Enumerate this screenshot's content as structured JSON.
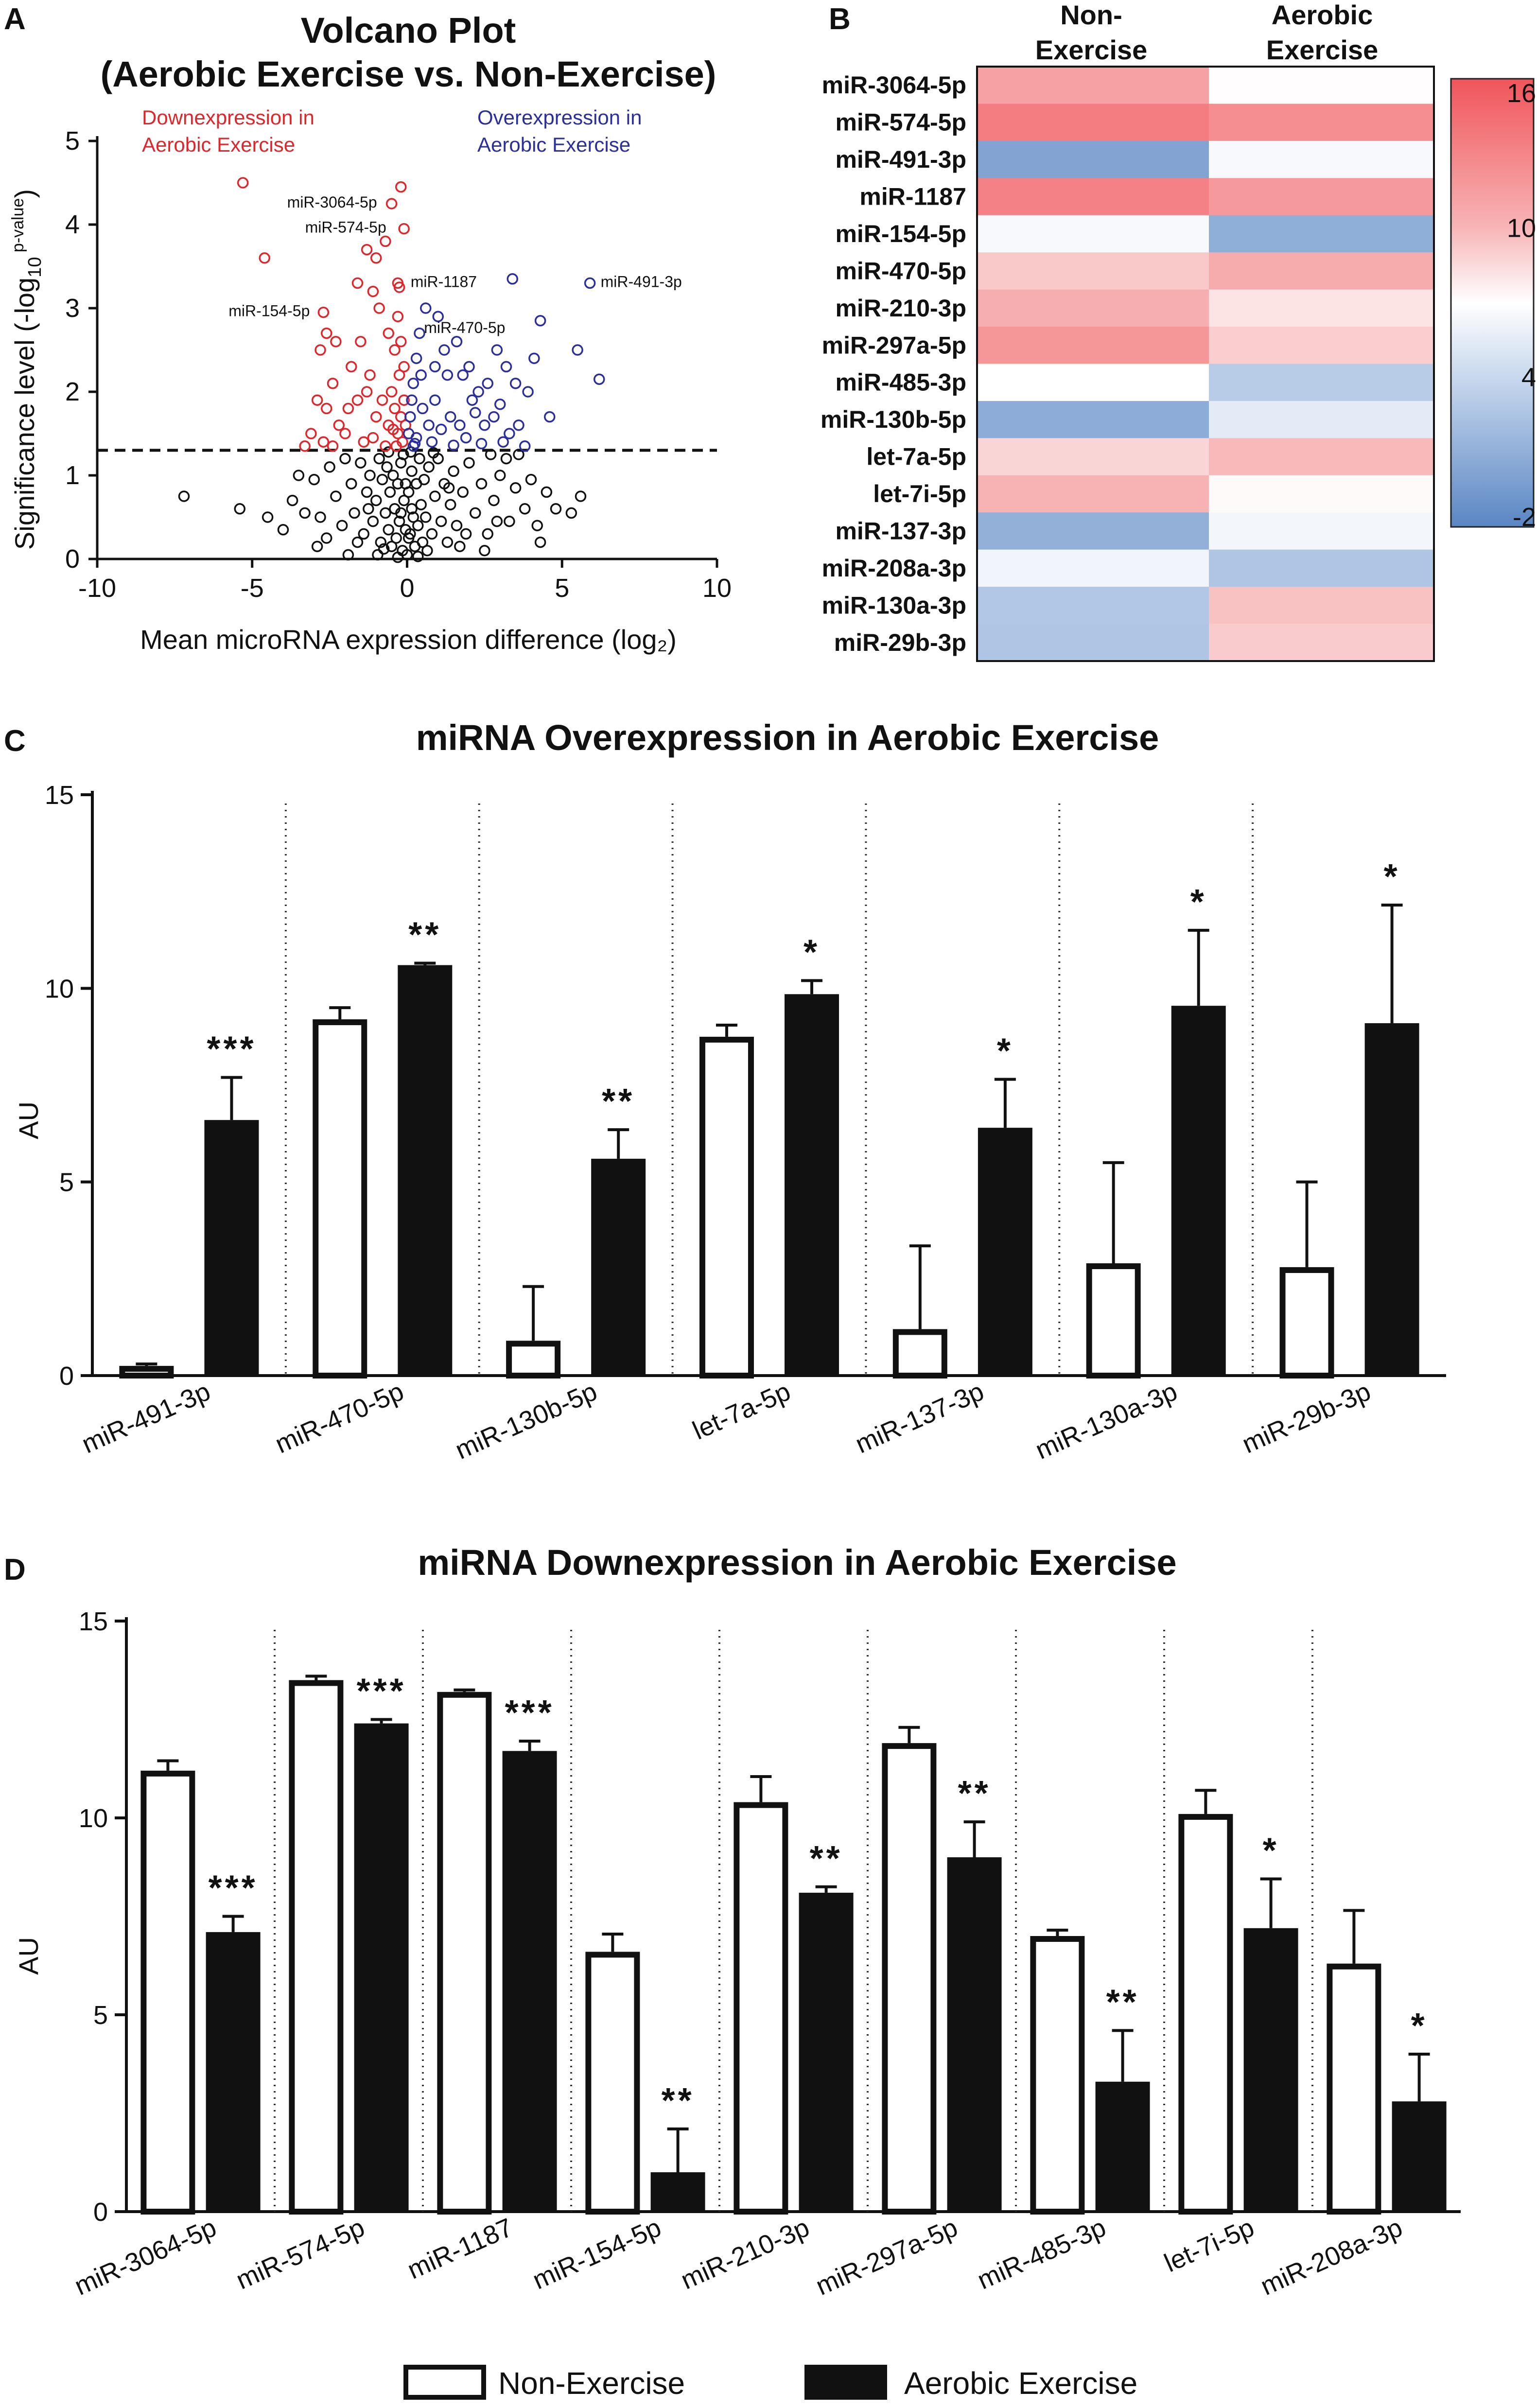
{
  "figure": {
    "panel_labels": [
      "A",
      "B",
      "C",
      "D"
    ],
    "legend": {
      "non_exercise": "Non-Exercise",
      "aerobic": "Aerobic Exercise"
    },
    "colors": {
      "down": "#e0262b",
      "up": "#2b2f9e",
      "neutral": "#111111",
      "hot": "#f0555a",
      "cold": "#5a86c4"
    }
  },
  "chart_data": [
    {
      "id": "A",
      "type": "scatter",
      "title": "Volcano  Plot",
      "subtitle": "(Aerobic Exercise vs. Non-Exercise)",
      "xlabel": "Mean microRNA expression difference (log₂)",
      "ylabel_main": "Significance level (-log",
      "ylabel_sub": "10",
      "ylabel_sup": " p-value",
      "ylabel_end": ")",
      "xlim": [
        -10,
        10
      ],
      "ylim": [
        0,
        5
      ],
      "xticks": [
        "-10",
        "-5",
        "0",
        "5",
        "10"
      ],
      "yticks": [
        "0",
        "1",
        "2",
        "3",
        "4",
        "5"
      ],
      "threshold_y": 1.3,
      "regions": {
        "down": [
          "Downexpression in",
          "Aerobic Exercise"
        ],
        "up": [
          "Overexpression in",
          "Aerobic Exercise"
        ]
      },
      "annotations": [
        {
          "label": "miR-3064-5p",
          "x": -0.5,
          "y": 4.25
        },
        {
          "label": "miR-574-5p",
          "x": -0.2,
          "y": 3.95
        },
        {
          "label": "miR-1187",
          "x": -0.2,
          "y": 3.3
        },
        {
          "label": "miR-491-3p",
          "x": 5.9,
          "y": 3.3
        },
        {
          "label": "miR-154-5p",
          "x": -2.7,
          "y": 2.95
        },
        {
          "label": "miR-470-5p",
          "x": 0.2,
          "y": 2.75
        }
      ],
      "points_down": [
        [
          -5.3,
          4.5
        ],
        [
          -4.6,
          3.6
        ],
        [
          -2.7,
          2.95
        ],
        [
          -0.5,
          4.25
        ],
        [
          -0.2,
          4.45
        ],
        [
          -0.1,
          3.95
        ],
        [
          -0.3,
          3.3
        ],
        [
          -0.25,
          3.25
        ],
        [
          -1.3,
          3.7
        ],
        [
          -1.0,
          3.6
        ],
        [
          -0.7,
          3.8
        ],
        [
          -1.1,
          3.2
        ],
        [
          -0.9,
          3.0
        ],
        [
          -1.6,
          3.3
        ],
        [
          -2.4,
          2.1
        ],
        [
          -2.8,
          2.5
        ],
        [
          -2.6,
          2.7
        ],
        [
          -2.3,
          2.6
        ],
        [
          -1.8,
          2.3
        ],
        [
          -1.5,
          2.6
        ],
        [
          -1.2,
          2.2
        ],
        [
          -0.6,
          2.7
        ],
        [
          -0.4,
          2.5
        ],
        [
          -0.3,
          2.9
        ],
        [
          -0.2,
          2.6
        ],
        [
          -0.1,
          2.3
        ],
        [
          -2.9,
          1.9
        ],
        [
          -2.6,
          1.8
        ],
        [
          -2.2,
          1.6
        ],
        [
          -1.9,
          1.8
        ],
        [
          -1.6,
          1.9
        ],
        [
          -1.3,
          2.0
        ],
        [
          -1.0,
          1.7
        ],
        [
          -0.8,
          1.9
        ],
        [
          -0.6,
          1.6
        ],
        [
          -0.5,
          2.0
        ],
        [
          -0.4,
          1.8
        ],
        [
          -0.3,
          1.5
        ],
        [
          -0.2,
          1.7
        ],
        [
          -0.15,
          1.4
        ],
        [
          -0.1,
          1.9
        ],
        [
          -0.05,
          1.6
        ],
        [
          -3.1,
          1.5
        ],
        [
          -2.7,
          1.4
        ],
        [
          -2.4,
          1.35
        ],
        [
          -1.4,
          1.4
        ],
        [
          -1.1,
          1.45
        ],
        [
          -0.7,
          1.35
        ],
        [
          -3.3,
          1.35
        ],
        [
          -2.0,
          1.5
        ],
        [
          -0.45,
          1.55
        ],
        [
          -0.25,
          2.2
        ],
        [
          -0.35,
          1.35
        ]
      ],
      "points_up": [
        [
          5.9,
          3.3
        ],
        [
          6.2,
          2.15
        ],
        [
          5.5,
          2.5
        ],
        [
          4.3,
          2.85
        ],
        [
          3.4,
          3.35
        ],
        [
          3.2,
          2.3
        ],
        [
          2.9,
          2.5
        ],
        [
          2.6,
          2.1
        ],
        [
          2.3,
          2.0
        ],
        [
          2.0,
          2.3
        ],
        [
          1.6,
          2.6
        ],
        [
          1.3,
          2.2
        ],
        [
          1.0,
          2.9
        ],
        [
          0.6,
          3.0
        ],
        [
          0.4,
          2.7
        ],
        [
          0.3,
          2.4
        ],
        [
          0.2,
          2.1
        ],
        [
          0.15,
          1.9
        ],
        [
          0.1,
          1.7
        ],
        [
          0.05,
          1.5
        ],
        [
          0.5,
          1.8
        ],
        [
          0.7,
          1.6
        ],
        [
          0.9,
          1.9
        ],
        [
          1.1,
          1.55
        ],
        [
          1.4,
          1.7
        ],
        [
          1.7,
          1.6
        ],
        [
          1.9,
          1.45
        ],
        [
          2.2,
          1.75
        ],
        [
          2.5,
          1.6
        ],
        [
          2.8,
          1.7
        ],
        [
          3.0,
          1.85
        ],
        [
          3.3,
          1.5
        ],
        [
          3.6,
          1.6
        ],
        [
          3.9,
          2.0
        ],
        [
          4.1,
          2.4
        ],
        [
          3.8,
          1.35
        ],
        [
          3.1,
          1.4
        ],
        [
          2.4,
          1.38
        ],
        [
          1.5,
          1.36
        ],
        [
          0.8,
          1.4
        ],
        [
          0.3,
          1.45
        ],
        [
          0.25,
          1.38
        ],
        [
          4.6,
          1.7
        ],
        [
          2.1,
          1.9
        ],
        [
          1.2,
          2.5
        ],
        [
          0.9,
          2.3
        ],
        [
          0.45,
          2.2
        ],
        [
          1.8,
          2.2
        ],
        [
          0.2,
          1.35
        ],
        [
          3.5,
          2.1
        ]
      ],
      "points_ns": [
        [
          -7.2,
          0.75
        ],
        [
          -5.4,
          0.6
        ],
        [
          -4.5,
          0.5
        ],
        [
          -3.7,
          0.7
        ],
        [
          -3.3,
          0.55
        ],
        [
          -3.0,
          0.95
        ],
        [
          -2.8,
          0.5
        ],
        [
          -2.5,
          1.1
        ],
        [
          -2.3,
          0.75
        ],
        [
          -2.1,
          0.4
        ],
        [
          -2.0,
          1.2
        ],
        [
          -1.8,
          0.9
        ],
        [
          -1.7,
          0.55
        ],
        [
          -1.5,
          1.15
        ],
        [
          -1.4,
          0.3
        ],
        [
          -1.3,
          0.8
        ],
        [
          -1.2,
          1.0
        ],
        [
          -1.1,
          0.45
        ],
        [
          -1.0,
          0.7
        ],
        [
          -0.9,
          1.2
        ],
        [
          -0.85,
          0.2
        ],
        [
          -0.8,
          0.95
        ],
        [
          -0.7,
          0.55
        ],
        [
          -0.65,
          1.1
        ],
        [
          -0.6,
          0.35
        ],
        [
          -0.55,
          0.8
        ],
        [
          -0.5,
          0.15
        ],
        [
          -0.45,
          1.0
        ],
        [
          -0.4,
          0.6
        ],
        [
          -0.35,
          0.25
        ],
        [
          -0.3,
          0.9
        ],
        [
          -0.25,
          0.45
        ],
        [
          -0.2,
          1.15
        ],
        [
          -0.15,
          0.1
        ],
        [
          -0.1,
          0.7
        ],
        [
          -0.05,
          0.35
        ],
        [
          0.0,
          0.05
        ],
        [
          0.05,
          0.8
        ],
        [
          0.1,
          0.3
        ],
        [
          0.15,
          1.05
        ],
        [
          0.2,
          0.5
        ],
        [
          0.25,
          0.15
        ],
        [
          0.3,
          0.9
        ],
        [
          0.35,
          0.4
        ],
        [
          0.4,
          1.2
        ],
        [
          0.45,
          0.65
        ],
        [
          0.5,
          0.2
        ],
        [
          0.55,
          0.95
        ],
        [
          0.6,
          0.5
        ],
        [
          0.7,
          1.1
        ],
        [
          0.8,
          0.3
        ],
        [
          0.9,
          0.75
        ],
        [
          1.0,
          1.2
        ],
        [
          1.1,
          0.45
        ],
        [
          1.2,
          0.9
        ],
        [
          1.3,
          0.2
        ],
        [
          1.4,
          0.65
        ],
        [
          1.5,
          1.05
        ],
        [
          1.6,
          0.4
        ],
        [
          1.8,
          0.8
        ],
        [
          2.0,
          1.15
        ],
        [
          2.2,
          0.55
        ],
        [
          2.4,
          0.9
        ],
        [
          2.6,
          0.3
        ],
        [
          2.8,
          0.7
        ],
        [
          3.0,
          1.0
        ],
        [
          3.3,
          0.45
        ],
        [
          3.5,
          0.85
        ],
        [
          3.8,
          0.6
        ],
        [
          4.0,
          0.95
        ],
        [
          4.2,
          0.4
        ],
        [
          4.5,
          0.8
        ],
        [
          4.8,
          0.6
        ],
        [
          5.3,
          0.55
        ],
        [
          5.6,
          0.75
        ],
        [
          3.2,
          1.2
        ],
        [
          3.6,
          1.25
        ],
        [
          2.7,
          1.25
        ],
        [
          -3.5,
          1.0
        ],
        [
          -0.95,
          0.05
        ],
        [
          -0.75,
          0.12
        ],
        [
          -0.3,
          0.02
        ],
        [
          0.35,
          0.03
        ],
        [
          0.65,
          0.1
        ],
        [
          -1.6,
          0.2
        ],
        [
          1.7,
          0.15
        ],
        [
          -2.6,
          0.25
        ],
        [
          2.5,
          0.1
        ],
        [
          -0.2,
          0.55
        ],
        [
          0.15,
          0.6
        ],
        [
          0.05,
          0.25
        ],
        [
          -0.05,
          0.9
        ],
        [
          -0.12,
          1.25
        ],
        [
          0.12,
          1.28
        ],
        [
          -1.9,
          0.05
        ],
        [
          1.9,
          0.3
        ],
        [
          -4.0,
          0.35
        ],
        [
          4.3,
          0.2
        ],
        [
          -2.9,
          0.15
        ],
        [
          2.9,
          0.45
        ],
        [
          0.85,
          1.27
        ],
        [
          -0.6,
          1.28
        ],
        [
          -1.25,
          0.6
        ],
        [
          1.35,
          0.85
        ]
      ]
    },
    {
      "id": "B",
      "type": "heatmap",
      "columns": [
        [
          "Non-",
          "Exercise"
        ],
        [
          "Aerobic",
          "Exercise"
        ]
      ],
      "rows": [
        "miR-3064-5p",
        "miR-574-5p",
        "miR-491-3p",
        "miR-1187",
        "miR-154-5p",
        "miR-470-5p",
        "miR-210-3p",
        "miR-297a-5p",
        "miR-485-3p",
        "miR-130b-5p",
        "let-7a-5p",
        "let-7i-5p",
        "miR-137-3p",
        "miR-208a-3p",
        "miR-130a-3p",
        "miR-29b-3p"
      ],
      "values": [
        [
          11.2,
          7.1
        ],
        [
          13.5,
          12.4
        ],
        [
          0.3,
          6.6
        ],
        [
          13.2,
          11.7
        ],
        [
          6.6,
          1.0
        ],
        [
          9.2,
          10.6
        ],
        [
          10.4,
          8.1
        ],
        [
          11.9,
          9.0
        ],
        [
          7.0,
          3.3
        ],
        [
          0.9,
          5.6
        ],
        [
          8.7,
          9.8
        ],
        [
          10.1,
          7.2
        ],
        [
          1.2,
          6.4
        ],
        [
          6.3,
          2.8
        ],
        [
          2.9,
          9.5
        ],
        [
          2.8,
          9.1
        ]
      ],
      "scale": {
        "min": -2,
        "max": 16,
        "ticks": [
          "16",
          "10",
          "4",
          "-2"
        ],
        "tick_values": [
          16,
          10,
          4,
          -2
        ]
      }
    },
    {
      "id": "C",
      "type": "bar",
      "title": "miRNA Overexpression in Aerobic Exercise",
      "ylabel": "AU",
      "ylim": [
        0,
        15
      ],
      "yticks": [
        "0",
        "5",
        "10",
        "15"
      ],
      "categories": [
        "miR-491-3p",
        "miR-470-5p",
        "miR-130b-5p",
        "let-7a-5p",
        "miR-137-3p",
        "miR-130a-3p",
        "miR-29b-3p"
      ],
      "series": [
        {
          "name": "Non-Exercise",
          "values": [
            0.25,
            9.2,
            0.9,
            8.75,
            1.2,
            2.9,
            2.8
          ],
          "errors": [
            0.05,
            0.3,
            1.4,
            0.3,
            2.15,
            2.6,
            2.2
          ]
        },
        {
          "name": "Aerobic Exercise",
          "values": [
            6.6,
            10.6,
            5.6,
            9.85,
            6.4,
            9.55,
            9.1
          ],
          "errors": [
            1.1,
            0.05,
            0.75,
            0.35,
            1.25,
            1.95,
            3.05
          ]
        }
      ],
      "significance": [
        "***",
        "**",
        "**",
        "*",
        "*",
        "*",
        "*"
      ]
    },
    {
      "id": "D",
      "type": "bar",
      "title": "miRNA Downexpression in Aerobic Exercise",
      "ylabel": "AU",
      "ylim": [
        0,
        15
      ],
      "yticks": [
        "0",
        "5",
        "10",
        "15"
      ],
      "categories": [
        "miR-3064-5p",
        "miR-574-5p",
        "miR-1187",
        "miR-154-5p",
        "miR-210-3p",
        "miR-297a-5p",
        "miR-485-3p",
        "let-7i-5p",
        "miR-208a-3p"
      ],
      "series": [
        {
          "name": "Non-Exercise",
          "values": [
            11.2,
            13.5,
            13.2,
            6.6,
            10.4,
            11.9,
            7.0,
            10.1,
            6.3
          ],
          "errors": [
            0.25,
            0.1,
            0.05,
            0.45,
            0.65,
            0.4,
            0.15,
            0.6,
            1.35
          ]
        },
        {
          "name": "Aerobic Exercise",
          "values": [
            7.1,
            12.4,
            11.7,
            1.0,
            8.1,
            9.0,
            3.3,
            7.2,
            2.8
          ],
          "errors": [
            0.4,
            0.1,
            0.25,
            1.1,
            0.15,
            0.9,
            1.3,
            1.25,
            1.2
          ]
        }
      ],
      "significance": [
        "***",
        "***",
        "***",
        "**",
        "**",
        "**",
        "**",
        "*",
        "*"
      ]
    }
  ]
}
